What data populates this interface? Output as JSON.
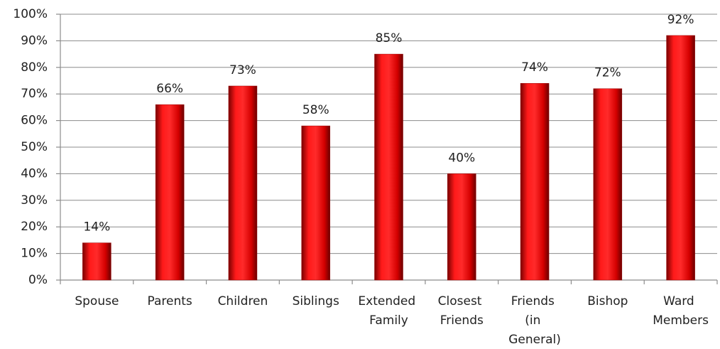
{
  "chart_data": {
    "type": "bar",
    "categories": [
      "Spouse",
      "Parents",
      "Children",
      "Siblings",
      "Extended Family",
      "Closest Friends",
      "Friends (in General)",
      "Bishop",
      "Ward Members"
    ],
    "values": [
      14,
      66,
      73,
      58,
      85,
      40,
      74,
      72,
      92
    ],
    "value_labels": [
      "14%",
      "66%",
      "73%",
      "58%",
      "85%",
      "40%",
      "74%",
      "72%",
      "92%"
    ],
    "color": "#e00000",
    "ylim": [
      0,
      100
    ],
    "yticks": [
      {
        "value": 0,
        "label": "0%"
      },
      {
        "value": 10,
        "label": "10%"
      },
      {
        "value": 20,
        "label": "20%"
      },
      {
        "value": 30,
        "label": "30%"
      },
      {
        "value": 40,
        "label": "40%"
      },
      {
        "value": 50,
        "label": "50%"
      },
      {
        "value": 60,
        "label": "60%"
      },
      {
        "value": 70,
        "label": "70%"
      },
      {
        "value": 80,
        "label": "80%"
      },
      {
        "value": 90,
        "label": "90%"
      },
      {
        "value": 100,
        "label": "100%"
      }
    ],
    "grid": true
  }
}
